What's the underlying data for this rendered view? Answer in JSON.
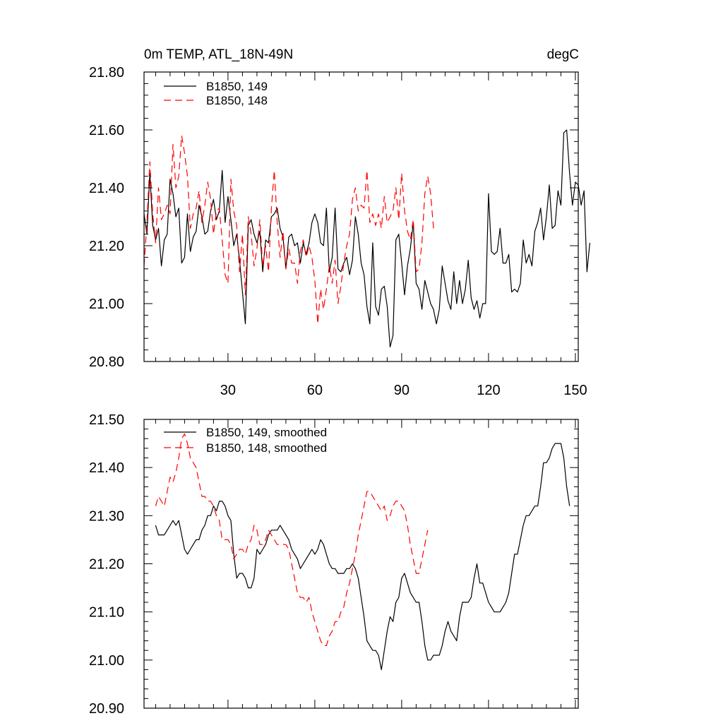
{
  "chart_data": [
    {
      "type": "line",
      "title_left": "0m TEMP, ATL_18N-49N",
      "title_right": "degC",
      "xlim": [
        1,
        151
      ],
      "ylim": [
        20.8,
        21.8
      ],
      "yticks": [
        "20.80",
        "21.00",
        "21.20",
        "21.40",
        "21.60",
        "21.80"
      ],
      "yticks_values": [
        20.8,
        21.0,
        21.2,
        21.4,
        21.6,
        21.8
      ],
      "xticks": [
        "30",
        "60",
        "90",
        "120",
        "150"
      ],
      "xticks_values": [
        30,
        60,
        90,
        120,
        150
      ],
      "series": [
        {
          "name": "B1850, 149",
          "color": "#000000",
          "dash": "solid",
          "x_start": 1,
          "values": [
            21.31,
            21.24,
            21.45,
            21.27,
            21.22,
            21.26,
            21.13,
            21.22,
            21.24,
            21.43,
            21.38,
            21.3,
            21.33,
            21.14,
            21.16,
            21.31,
            21.18,
            21.23,
            21.25,
            21.34,
            21.3,
            21.24,
            21.25,
            21.32,
            21.36,
            21.29,
            21.32,
            21.46,
            21.28,
            21.37,
            21.29,
            21.2,
            21.24,
            21.15,
            21.04,
            20.93,
            21.27,
            21.29,
            21.24,
            21.21,
            21.25,
            21.11,
            21.22,
            21.21,
            21.3,
            21.31,
            21.33,
            21.26,
            21.23,
            21.12,
            21.23,
            21.24,
            21.2,
            21.21,
            21.14,
            21.21,
            21.17,
            21.21,
            21.28,
            21.31,
            21.28,
            21.21,
            21.2,
            21.33,
            21.11,
            21.16,
            21.33,
            21.12,
            21.11,
            21.14,
            21.16,
            21.1,
            21.15,
            21.3,
            21.24,
            21.14,
            21.1,
            20.99,
            20.93,
            21.21,
            20.99,
            20.96,
            21.05,
            21.06,
            20.99,
            20.85,
            20.89,
            21.22,
            21.24,
            21.14,
            21.03,
            21.13,
            21.19,
            21.28,
            21.07,
            21.05,
            20.98,
            21.08,
            21.04,
            21.0,
            20.98,
            20.93,
            20.98,
            21.13,
            21.07,
            21.01,
            20.98,
            21.11,
            21.0,
            21.08,
            21.0,
            21.05,
            21.15,
            21.02,
            20.98,
            21.01,
            20.95,
            21.0,
            21.0,
            21.38,
            21.18,
            21.17,
            21.18,
            21.26,
            21.14,
            21.14,
            21.17,
            21.04,
            21.05,
            21.04,
            21.07,
            21.22,
            21.14,
            21.17,
            21.13,
            21.25,
            21.28,
            21.33,
            21.22,
            21.3,
            21.41,
            21.26,
            21.27,
            21.39,
            21.34,
            21.59,
            21.6,
            21.45,
            21.34,
            21.42,
            21.41,
            21.34,
            21.39,
            21.11,
            21.21
          ]
        },
        {
          "name": "B1850, 148",
          "color": "#ff0000",
          "dash": "dashed",
          "x_start": 1,
          "values": [
            21.13,
            21.28,
            21.49,
            21.31,
            21.21,
            21.4,
            21.29,
            21.31,
            21.34,
            21.31,
            21.55,
            21.4,
            21.44,
            21.58,
            21.52,
            21.44,
            21.26,
            21.31,
            21.33,
            21.39,
            21.28,
            21.34,
            21.42,
            21.36,
            21.24,
            21.32,
            21.33,
            21.22,
            21.1,
            21.07,
            21.43,
            21.32,
            21.27,
            21.11,
            21.24,
            21.03,
            21.3,
            21.24,
            21.13,
            21.19,
            21.29,
            21.13,
            21.2,
            21.11,
            21.33,
            21.46,
            21.28,
            21.16,
            21.25,
            21.12,
            21.19,
            21.14,
            21.14,
            21.07,
            21.18,
            21.22,
            21.16,
            21.2,
            21.16,
            21.08,
            20.93,
            21.05,
            20.98,
            21.05,
            21.13,
            21.07,
            21.15,
            21.0,
            21.06,
            21.14,
            21.2,
            21.24,
            21.36,
            21.4,
            21.32,
            21.34,
            21.33,
            21.46,
            21.28,
            21.31,
            21.27,
            21.31,
            21.26,
            21.37,
            21.28,
            21.3,
            21.32,
            21.4,
            21.29,
            21.45,
            21.32,
            21.25,
            21.22,
            21.29,
            21.11,
            21.12,
            21.21,
            21.38,
            21.44,
            21.38,
            21.26
          ]
        }
      ],
      "legend": [
        "B1850, 149",
        "B1850, 148"
      ]
    },
    {
      "type": "line",
      "xlim": [
        1,
        151
      ],
      "ylim": [
        20.9,
        21.5
      ],
      "yticks": [
        "20.90",
        "21.00",
        "21.10",
        "21.20",
        "21.30",
        "21.40",
        "21.50"
      ],
      "yticks_values": [
        20.9,
        21.0,
        21.1,
        21.2,
        21.3,
        21.4,
        21.5
      ],
      "xticks_values": [
        30,
        60,
        90,
        120,
        150
      ],
      "series": [
        {
          "name": "B1850, 149, smoothed",
          "color": "#000000",
          "dash": "solid",
          "x_start": 5,
          "values": [
            21.28,
            21.26,
            21.26,
            21.26,
            21.27,
            21.28,
            21.29,
            21.28,
            21.29,
            21.26,
            21.23,
            21.22,
            21.23,
            21.24,
            21.25,
            21.25,
            21.27,
            21.28,
            21.3,
            21.3,
            21.32,
            21.31,
            21.33,
            21.33,
            21.32,
            21.3,
            21.29,
            21.22,
            21.17,
            21.18,
            21.18,
            21.17,
            21.15,
            21.15,
            21.17,
            21.23,
            21.22,
            21.23,
            21.24,
            21.26,
            21.27,
            21.27,
            21.27,
            21.28,
            21.27,
            21.26,
            21.25,
            21.23,
            21.22,
            21.21,
            21.19,
            21.2,
            21.21,
            21.22,
            21.23,
            21.22,
            21.23,
            21.25,
            21.24,
            21.22,
            21.2,
            21.19,
            21.19,
            21.18,
            21.18,
            21.18,
            21.19,
            21.19,
            21.2,
            21.19,
            21.17,
            21.13,
            21.09,
            21.04,
            21.03,
            21.02,
            21.02,
            21.01,
            20.98,
            21.02,
            21.06,
            21.09,
            21.08,
            21.12,
            21.13,
            21.17,
            21.18,
            21.16,
            21.14,
            21.13,
            21.12,
            21.12,
            21.08,
            21.03,
            21.0,
            21.0,
            21.01,
            21.01,
            21.01,
            21.03,
            21.06,
            21.08,
            21.06,
            21.05,
            21.04,
            21.09,
            21.12,
            21.12,
            21.12,
            21.13,
            21.17,
            21.2,
            21.16,
            21.16,
            21.14,
            21.12,
            21.11,
            21.1,
            21.1,
            21.1,
            21.11,
            21.12,
            21.14,
            21.18,
            21.22,
            21.22,
            21.25,
            21.28,
            21.3,
            21.3,
            21.31,
            21.32,
            21.32,
            21.36,
            21.41,
            21.41,
            21.42,
            21.44,
            21.45,
            21.45,
            21.45,
            21.42,
            21.36,
            21.32
          ]
        },
        {
          "name": "B1850, 148, smoothed",
          "color": "#ff0000",
          "dash": "dashed",
          "x_start": 5,
          "values": [
            21.32,
            21.34,
            21.33,
            21.32,
            21.35,
            21.38,
            21.37,
            21.39,
            21.42,
            21.46,
            21.47,
            21.45,
            21.42,
            21.41,
            21.4,
            21.37,
            21.34,
            21.34,
            21.33,
            21.33,
            21.32,
            21.3,
            21.29,
            21.25,
            21.25,
            21.25,
            21.24,
            21.21,
            21.22,
            21.23,
            21.23,
            21.22,
            21.24,
            21.25,
            21.28,
            21.27,
            21.24,
            21.24,
            21.25,
            21.27,
            21.26,
            21.25,
            21.24,
            21.24,
            21.24,
            21.24,
            21.23,
            21.2,
            21.17,
            21.14,
            21.13,
            21.13,
            21.12,
            21.13,
            21.1,
            21.08,
            21.06,
            21.04,
            21.03,
            21.03,
            21.05,
            21.06,
            21.08,
            21.08,
            21.1,
            21.11,
            21.14,
            21.16,
            21.19,
            21.22,
            21.26,
            21.29,
            21.32,
            21.35,
            21.35,
            21.34,
            21.33,
            21.32,
            21.31,
            21.32,
            21.29,
            21.3,
            21.32,
            21.33,
            21.33,
            21.32,
            21.31,
            21.28,
            21.24,
            21.21,
            21.18,
            21.18,
            21.21,
            21.24,
            21.27
          ]
        }
      ],
      "legend": [
        "B1850, 149, smoothed",
        "B1850, 148, smoothed"
      ]
    }
  ]
}
